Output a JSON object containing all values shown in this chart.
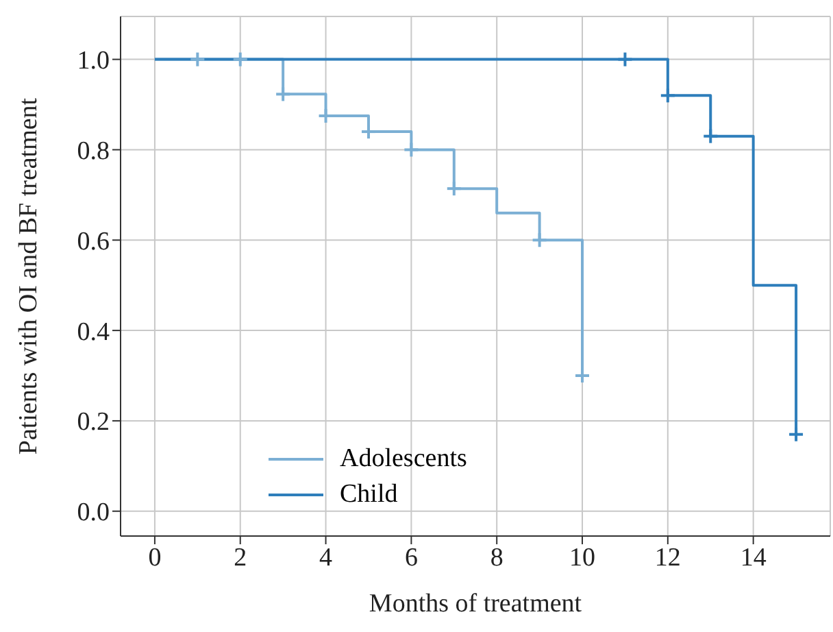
{
  "chart_data": {
    "type": "step",
    "xlabel": "Months of treatment",
    "ylabel": "Patients with OI and BF treatment",
    "xlim": [
      -0.8,
      15.8
    ],
    "ylim": [
      -0.055,
      1.095
    ],
    "xticks": [
      0,
      2,
      4,
      6,
      8,
      10,
      12,
      14
    ],
    "yticks": [
      {
        "value": 0,
        "label": "0.0"
      },
      0.2,
      0.4,
      0.6,
      0.8,
      {
        "value": 1,
        "label": "1.0"
      }
    ],
    "grid": true,
    "legend": "bottom left",
    "line_style": "solid",
    "series": [
      {
        "name": "Adolescents",
        "color": "#7bafd4",
        "marker": "none",
        "x": [
          0,
          3,
          4,
          5,
          6,
          7,
          8,
          9,
          10
        ],
        "values": [
          1,
          0.923,
          0.875,
          0.84,
          0.8,
          0.714,
          0.66,
          0.6,
          0.3
        ]
      },
      {
        "name": "Child",
        "color": "#2e7ebb",
        "marker": "none",
        "x": [
          0,
          12,
          13,
          14,
          15
        ],
        "values": [
          1,
          0.92,
          0.83,
          0.5,
          0.17
        ]
      },
      {
        "type": "scatter",
        "color": "#7bafd4",
        "marker": "cross",
        "x": [
          1,
          2,
          3,
          4,
          5,
          6,
          7,
          9,
          10
        ],
        "values": [
          1,
          1,
          0.923,
          0.875,
          0.84,
          0.8,
          0.714,
          0.6,
          0.3
        ]
      },
      {
        "type": "scatter",
        "color": "#2e7ebb",
        "marker": "cross",
        "x": [
          11,
          12,
          13,
          15
        ],
        "values": [
          1,
          0.92,
          0.83,
          0.17
        ]
      }
    ]
  }
}
